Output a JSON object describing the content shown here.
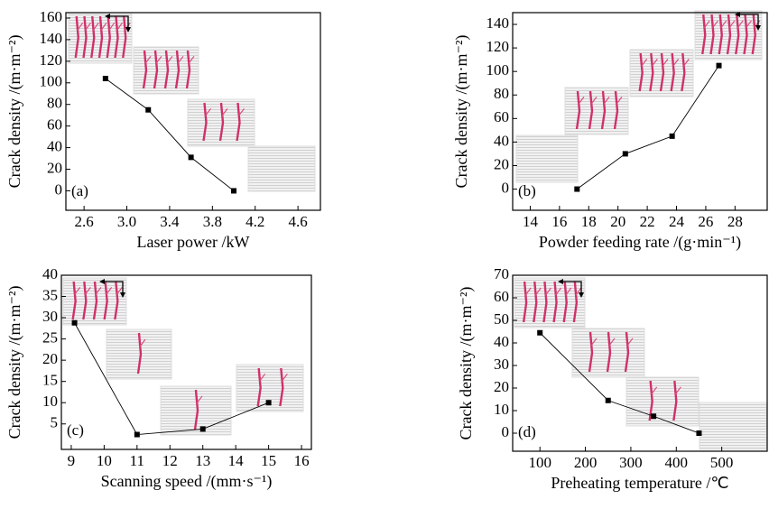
{
  "chart_data": [
    {
      "type": "line",
      "annotation": "(a)",
      "x_label": "Laser power /kW",
      "y_label": "Crack density /(m·m⁻²)",
      "x": [
        2.8,
        3.2,
        3.6,
        4.0
      ],
      "values": [
        104,
        75,
        31,
        0
      ],
      "color": "#000000",
      "xlim": [
        2.43,
        4.81
      ],
      "xticks": [
        {
          "value": 2.6,
          "label": "2.6"
        },
        {
          "value": 3.0,
          "label": "3.0"
        },
        {
          "value": 3.4,
          "label": "3.4"
        },
        {
          "value": 3.8,
          "label": "3.8"
        },
        {
          "value": 4.2,
          "label": "4.2"
        },
        {
          "value": 4.6,
          "label": "4.6"
        }
      ],
      "ylim": [
        -18,
        165
      ],
      "yticks": [
        0,
        20,
        40,
        60,
        80,
        100,
        120,
        140,
        160
      ]
    },
    {
      "type": "line",
      "annotation": "(b)",
      "x_label": "Powder feeding rate /(g·min⁻¹)",
      "y_label": "Crack density /(m·m⁻²)",
      "x": [
        17.2,
        20.5,
        23.7,
        26.9
      ],
      "values": [
        0,
        30,
        45,
        105
      ],
      "color": "#000000",
      "xlim": [
        12.8,
        30.2
      ],
      "xticks": [
        14,
        16,
        18,
        20,
        22,
        24,
        26,
        28
      ],
      "ylim": [
        -18,
        150
      ],
      "yticks": [
        0,
        20,
        40,
        60,
        80,
        100,
        120,
        140
      ]
    },
    {
      "type": "line",
      "annotation": "(c)",
      "x_label": "Scanning speed /(mm·s⁻¹)",
      "y_label": "Crack density /(m·m⁻²)",
      "x": [
        9.1,
        11,
        13,
        15
      ],
      "values": [
        28.8,
        2.5,
        3.8,
        10
      ],
      "color": "#000000",
      "xlim": [
        8.7,
        16.3
      ],
      "xticks": [
        9,
        10,
        11,
        12,
        13,
        14,
        15,
        16
      ],
      "ylim": [
        -1,
        40
      ],
      "yticks": [
        5,
        10,
        15,
        20,
        25,
        30,
        35,
        40
      ]
    },
    {
      "type": "line",
      "annotation": "(d)",
      "x_label": "Preheating temperature /℃",
      "y_label": "Crack density /(m·m⁻²)",
      "x": [
        100,
        250,
        350,
        450
      ],
      "values": [
        44.5,
        14.5,
        7.5,
        0
      ],
      "color": "#000000",
      "xlim": [
        40,
        600
      ],
      "xticks": [
        100,
        200,
        300,
        400,
        500
      ],
      "ylim": [
        -8,
        70
      ],
      "yticks": [
        0,
        10,
        20,
        30,
        40,
        50,
        60,
        70
      ]
    }
  ]
}
